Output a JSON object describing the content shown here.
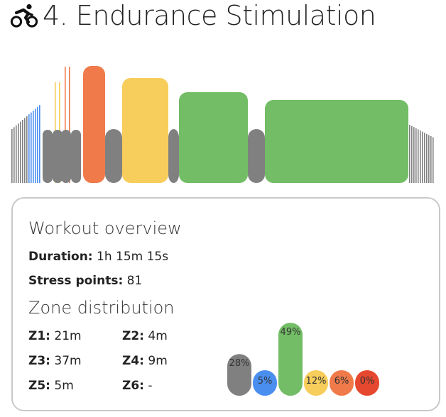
{
  "header": {
    "icon": "cyclist-icon",
    "title": "4. Endurance Stimulation"
  },
  "overview": {
    "title": "Workout overview",
    "duration_label": "Duration:",
    "duration_value": "1h 15m 15s",
    "stress_label": "Stress points:",
    "stress_value": "81"
  },
  "zones": {
    "title": "Zone distribution",
    "items": [
      {
        "label": "Z1:",
        "value": "21m"
      },
      {
        "label": "Z2:",
        "value": "4m"
      },
      {
        "label": "Z3:",
        "value": "37m"
      },
      {
        "label": "Z4:",
        "value": "9m"
      },
      {
        "label": "Z5:",
        "value": "5m"
      },
      {
        "label": "Z6:",
        "value": "-"
      }
    ]
  },
  "chart_data": {
    "type": "bar",
    "categories": [
      "Z1",
      "Z2",
      "Z3",
      "Z4",
      "Z5",
      "Z6"
    ],
    "values": [
      28,
      5,
      49,
      12,
      6,
      0
    ],
    "value_labels": [
      "28%",
      "5%",
      "49%",
      "12%",
      "6%",
      "0%"
    ],
    "unit": "%",
    "colors": [
      "#808080",
      "#4a8ef0",
      "#72bd65",
      "#f7cd5b",
      "#f07a4a",
      "#e5482e"
    ],
    "title": "",
    "xlabel": "",
    "ylabel": ""
  },
  "colors": {
    "z1": "#808080",
    "z2": "#4a8ef0",
    "z3": "#72bd65",
    "z4": "#f7cd5b",
    "z5": "#f07a4a",
    "z6": "#e5482e",
    "card_border": "#c9c9c9",
    "text": "#222222"
  }
}
